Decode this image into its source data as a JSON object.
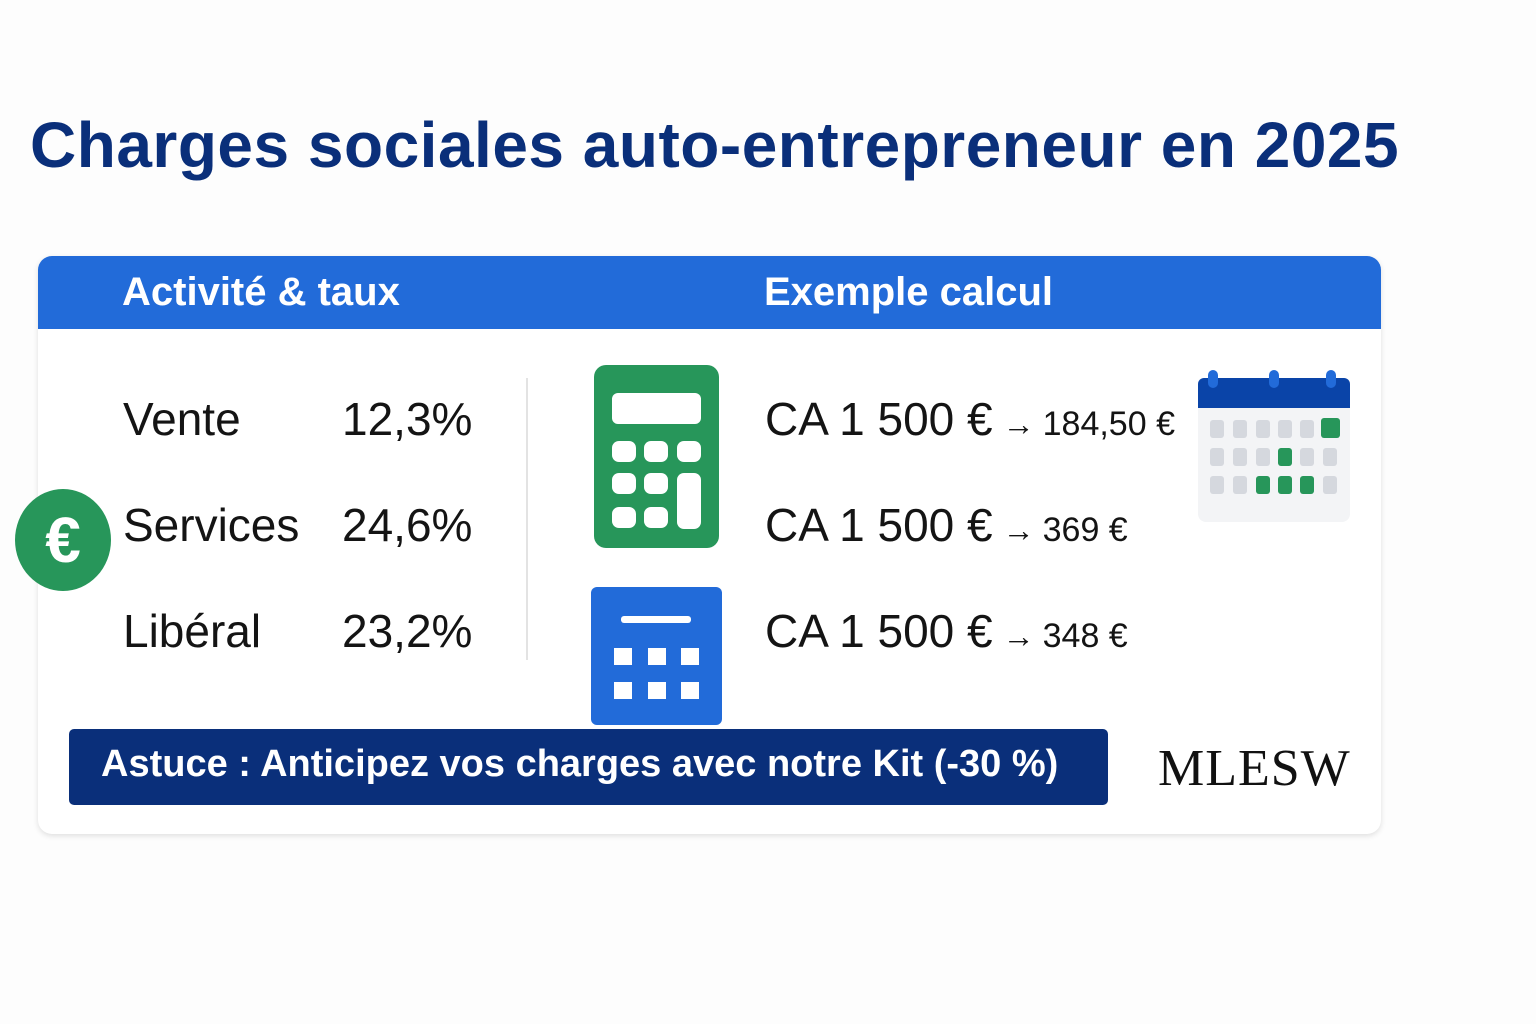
{
  "title": "Charges sociales auto-entrepreneur en 2025",
  "table": {
    "header_left": "Activité & taux",
    "header_right": "Exemple calcul",
    "rows": [
      {
        "activity": "Vente",
        "rate": "12,3%",
        "ca": "CA 1 500 €",
        "arrow": "→",
        "result": "184,50 €"
      },
      {
        "activity": "Services",
        "rate": "24,6%",
        "ca": "CA 1 500 €",
        "arrow": "→",
        "result": "369 €"
      },
      {
        "activity": "Libéral",
        "rate": "23,2%",
        "ca": "CA 1 500 €",
        "arrow": "→",
        "result": "348 €"
      }
    ]
  },
  "tip": "Astuce : Anticipez vos charges avec notre Kit (-30 %)",
  "logo": "MLESW",
  "icons": {
    "euro": "euro-icon",
    "calculator": "calculator-icon",
    "calendar_grid": "calendar-grid-icon",
    "calendar": "calendar-icon"
  },
  "colors": {
    "title": "#0a2f7a",
    "header": "#226bd9",
    "tip": "#0a2f7a",
    "green": "#27965a",
    "blue": "#226bd9"
  },
  "euro_symbol": "€"
}
